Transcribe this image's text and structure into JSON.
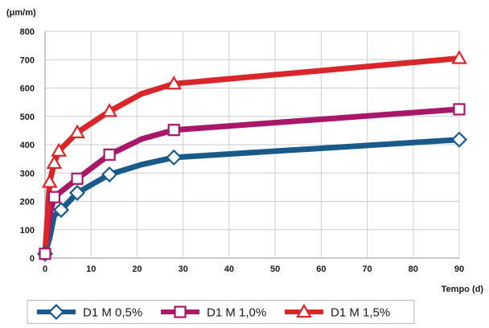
{
  "chart_data": {
    "type": "line",
    "title": "",
    "xlabel": "Tempo (d)",
    "ylabel": "(μm/m)",
    "xlim": [
      0,
      90
    ],
    "ylim": [
      0,
      800
    ],
    "x_ticks": [
      "0",
      "10",
      "20",
      "30",
      "40",
      "50",
      "60",
      "70",
      "80",
      "90"
    ],
    "y_ticks": [
      "0",
      "100",
      "200",
      "300",
      "400",
      "500",
      "600",
      "700",
      "800"
    ],
    "grid": "horizontal and vertical",
    "legend_position": "bottom",
    "series": [
      {
        "name": "D1 M 0,5%",
        "color": "#1a5a8a",
        "marker": "diamond",
        "points": [
          [
            0,
            15
          ],
          [
            1,
            70
          ],
          [
            2,
            150
          ],
          [
            3.5,
            170
          ],
          [
            7,
            230
          ],
          [
            14,
            295
          ],
          [
            21,
            330
          ],
          [
            28,
            355
          ],
          [
            90,
            418
          ]
        ],
        "marked_x": [
          0,
          3.5,
          7,
          14,
          28,
          90
        ]
      },
      {
        "name": "D1 M 1,0%",
        "color": "#a8176a",
        "marker": "square",
        "points": [
          [
            0,
            15
          ],
          [
            1,
            150
          ],
          [
            2,
            215
          ],
          [
            7,
            280
          ],
          [
            14,
            365
          ],
          [
            21,
            420
          ],
          [
            28,
            452
          ],
          [
            90,
            525
          ]
        ],
        "marked_x": [
          0,
          2,
          7,
          14,
          28,
          90
        ]
      },
      {
        "name": "D1 M 1,5%",
        "color": "#d9262b",
        "marker": "triangle",
        "points": [
          [
            0,
            15
          ],
          [
            1,
            268
          ],
          [
            2,
            335
          ],
          [
            3,
            378
          ],
          [
            7,
            443
          ],
          [
            14,
            518
          ],
          [
            21,
            580
          ],
          [
            28,
            615
          ],
          [
            90,
            705
          ]
        ],
        "marked_x": [
          1,
          2,
          3,
          7,
          14,
          28,
          90
        ]
      }
    ]
  }
}
